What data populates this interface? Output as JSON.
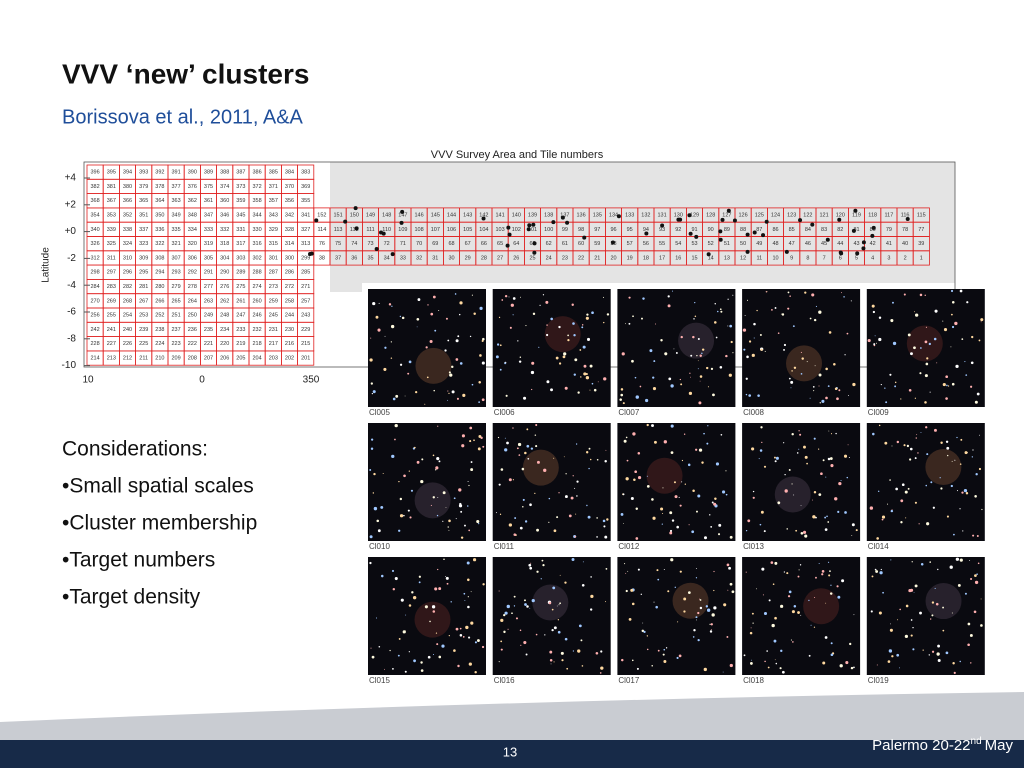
{
  "header": {
    "title": "VVV ‘new’ clusters",
    "subtitle": "Borissova et al., 2011, A&A"
  },
  "figure": {
    "title": "VVV Survey Area and Tile numbers",
    "y_label": "Latitude",
    "y_ticks": [
      "+4",
      "+2",
      "+0",
      "-2",
      "-4",
      "-6",
      "-8",
      "-10"
    ],
    "x_ticks": [
      "10",
      "0",
      "350"
    ],
    "bulge_rows": [
      [
        396,
        395,
        394,
        393,
        392,
        391,
        390,
        389,
        388,
        387,
        386,
        385,
        384,
        383
      ],
      [
        382,
        381,
        380,
        379,
        378,
        377,
        376,
        375,
        374,
        373,
        372,
        371,
        370,
        369
      ],
      [
        368,
        367,
        366,
        365,
        364,
        363,
        362,
        361,
        360,
        359,
        358,
        357,
        356,
        355
      ],
      [
        354,
        353,
        352,
        351,
        350,
        349,
        348,
        347,
        346,
        345,
        344,
        343,
        342,
        341
      ],
      [
        340,
        339,
        338,
        337,
        336,
        335,
        334,
        333,
        332,
        331,
        330,
        329,
        328,
        327
      ],
      [
        326,
        325,
        324,
        323,
        322,
        321,
        320,
        319,
        318,
        317,
        316,
        315,
        314,
        313
      ],
      [
        312,
        311,
        310,
        309,
        308,
        307,
        306,
        305,
        304,
        303,
        302,
        301,
        300,
        299
      ],
      [
        298,
        297,
        296,
        295,
        294,
        293,
        292,
        291,
        290,
        289,
        288,
        287,
        286,
        285
      ],
      [
        284,
        283,
        282,
        281,
        280,
        279,
        278,
        277,
        276,
        275,
        274,
        273,
        272,
        271
      ],
      [
        270,
        269,
        268,
        267,
        266,
        265,
        264,
        263,
        262,
        261,
        260,
        259,
        258,
        257
      ],
      [
        256,
        255,
        254,
        253,
        252,
        251,
        250,
        249,
        248,
        247,
        246,
        245,
        244,
        243
      ],
      [
        242,
        241,
        240,
        239,
        238,
        237,
        236,
        235,
        234,
        233,
        232,
        231,
        230,
        229
      ],
      [
        228,
        227,
        226,
        225,
        224,
        223,
        222,
        221,
        220,
        219,
        218,
        217,
        216,
        215
      ],
      [
        214,
        213,
        212,
        211,
        210,
        209,
        208,
        207,
        206,
        205,
        204,
        203,
        202,
        201
      ]
    ],
    "disk_rows": [
      [
        152,
        151,
        150,
        149,
        148,
        147,
        146,
        145,
        144,
        143,
        142,
        141,
        140,
        139,
        138,
        137,
        136,
        135,
        134,
        133,
        132,
        131,
        130,
        129,
        128,
        127,
        126,
        125,
        124,
        123,
        122,
        121,
        120,
        119,
        118,
        117,
        116,
        115
      ],
      [
        114,
        113,
        112,
        111,
        110,
        109,
        108,
        107,
        106,
        105,
        104,
        103,
        102,
        101,
        100,
        99,
        98,
        97,
        96,
        95,
        94,
        93,
        92,
        91,
        90,
        89,
        88,
        87,
        86,
        85,
        84,
        83,
        82,
        81,
        80,
        79,
        78,
        77
      ],
      [
        76,
        75,
        74,
        73,
        72,
        71,
        70,
        69,
        68,
        67,
        66,
        65,
        64,
        63,
        62,
        61,
        60,
        59,
        58,
        57,
        56,
        55,
        54,
        53,
        52,
        51,
        50,
        49,
        48,
        47,
        46,
        45,
        44,
        43,
        42,
        41,
        40,
        39
      ],
      [
        38,
        37,
        36,
        35,
        34,
        33,
        32,
        31,
        30,
        29,
        28,
        27,
        26,
        25,
        24,
        23,
        22,
        21,
        20,
        19,
        18,
        17,
        16,
        15,
        14,
        13,
        12,
        11,
        10,
        9,
        8,
        7,
        6,
        5,
        4,
        3,
        2,
        1
      ]
    ]
  },
  "images": [
    "Cl005",
    "Cl006",
    "Cl007",
    "Cl008",
    "Cl009",
    "Cl010",
    "Cl011",
    "Cl012",
    "Cl013",
    "Cl014",
    "Cl015",
    "Cl016",
    "Cl017",
    "Cl018",
    "Cl019"
  ],
  "considerations": {
    "heading": "Considerations:",
    "items": [
      "•Small spatial scales",
      "•Cluster membership",
      "•Target numbers",
      "•Target density"
    ]
  },
  "footer": {
    "page": "13",
    "event": "Palermo 20-22",
    "event_sup": "nd",
    "event_end": "May"
  }
}
